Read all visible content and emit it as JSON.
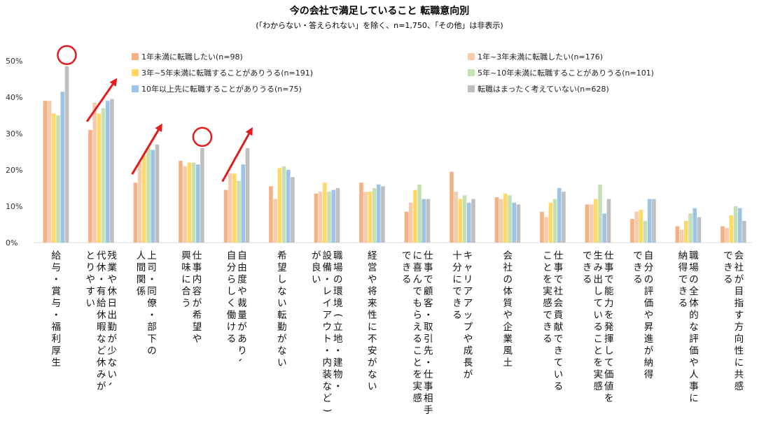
{
  "chart_data": {
    "type": "bar",
    "title": "今の会社で満足していること 転職意向別",
    "subtitle": "(「わからない・答えられない」を除く、n=1,750、「その他」は非表示)",
    "ylim": [
      0,
      50
    ],
    "yticks": [
      "0%",
      "10%",
      "20%",
      "30%",
      "40%",
      "50%"
    ],
    "yticks_values": [
      0,
      10,
      20,
      30,
      40,
      50
    ],
    "legend_position": "top-right",
    "categories": [
      [
        "給与・賞与・福利厚生"
      ],
      [
        "残業や休日出勤が少ない、",
        "代休・有給休暇など休みが",
        "とりやすい"
      ],
      [
        "上司・同僚・部下の",
        "人間関係"
      ],
      [
        "仕事内容が希望や",
        "興味に合う"
      ],
      [
        "自由度や裁量があり、",
        "自分らしく働ける"
      ],
      [
        "希望しない転勤がない"
      ],
      [
        "職場の環境(立地・建物・",
        "設備・レイアウト・内装など)",
        "が良い"
      ],
      [
        "経営や将来性に不安がない"
      ],
      [
        "仕事で顧客・取引先・仕事相手",
        "に喜んでもらえることを実感",
        "できる"
      ],
      [
        "キャリアアップや成長が",
        "十分にできる"
      ],
      [
        "会社の体質や企業風土"
      ],
      [
        "仕事で社会貢献できている",
        "ことを実感できる"
      ],
      [
        "仕事で能力を発揮して価値を",
        "生み出していることを実感",
        "できる"
      ],
      [
        "自分の評価や昇進が納得",
        "できる"
      ],
      [
        "職場の全体的な評価や人事に",
        "納得できる"
      ],
      [
        "会社が目指す方向性に共感",
        "できる"
      ]
    ],
    "series": [
      {
        "name": "1年未満に転職したい(n=98)",
        "color": "#f4b183",
        "values": [
          39,
          31,
          16.5,
          22.5,
          14.5,
          15.5,
          13.5,
          16.5,
          8.5,
          19.5,
          12.5,
          8.5,
          10.5,
          6.5,
          4.5,
          4.5
        ]
      },
      {
        "name": "1年~3年未満に転職したい(n=176)",
        "color": "#f8cbad",
        "values": [
          39,
          38.5,
          22,
          21,
          19,
          12,
          14,
          14,
          11,
          14,
          12,
          7,
          10.5,
          8.5,
          3.5,
          4
        ]
      },
      {
        "name": "3年~5年未満に転職することがありうる(n=191)",
        "color": "#ffd966",
        "values": [
          35.5,
          35.5,
          24,
          22,
          19,
          20.5,
          16.5,
          14,
          14.5,
          12,
          13.5,
          11,
          12,
          9,
          6,
          7.5
        ]
      },
      {
        "name": "5年~10年未満に転職することがありうる(n=101)",
        "color": "#c5e0b4",
        "values": [
          35,
          37,
          26,
          22,
          17,
          21,
          14,
          15,
          16,
          13,
          13,
          12,
          16,
          6,
          8,
          10
        ]
      },
      {
        "name": "10年以上先に転職することがありうる(n=75)",
        "color": "#9dc3e6",
        "values": [
          41.5,
          39,
          25.5,
          21.5,
          21.5,
          20,
          14.5,
          16,
          12,
          11,
          11,
          15,
          8,
          12,
          9.5,
          9.5
        ]
      },
      {
        "name": "転職はまったく考えていない(n=628)",
        "color": "#bfbfbf",
        "values": [
          48.5,
          39.5,
          27,
          26,
          26,
          18,
          15,
          15.5,
          12,
          12,
          10.5,
          14,
          12,
          12,
          7,
          6
        ]
      }
    ],
    "annotations": {
      "circles_on_category": [
        0,
        3
      ],
      "arrows_on_category": [
        1,
        2,
        4
      ],
      "color": "#e41a1c"
    }
  }
}
